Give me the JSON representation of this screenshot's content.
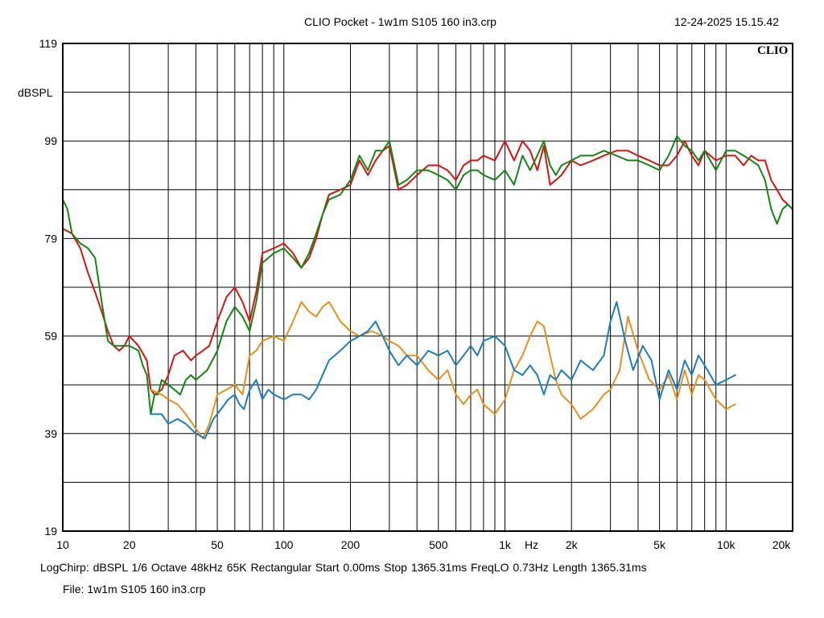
{
  "header": {
    "title": "CLIO Pocket - 1w1m  S105 160 in3.crp",
    "datetime": "12-24-2025 15.15.42",
    "logo": "CLIO"
  },
  "footer": {
    "settings_line": "LogChirp:  dBSPL   1/6 Octave   48kHz   65K   Rectangular   Start 0.00ms    Stop 1365.31ms    FreqLO 0.73Hz    Length 1365.31ms",
    "file_line": "File: 1w1m  S105 160 in3.crp"
  },
  "chart_data": {
    "type": "line",
    "title": "CLIO Pocket - 1w1m  S105 160 in3.crp",
    "xlabel": "Hz",
    "ylabel": "dBSPL",
    "xscale": "log",
    "xlim": [
      10,
      20000
    ],
    "ylim": [
      19,
      119
    ],
    "grid": true,
    "x_tick_labels": [
      {
        "v": 10,
        "t": "10"
      },
      {
        "v": 20,
        "t": "20"
      },
      {
        "v": 50,
        "t": "50"
      },
      {
        "v": 100,
        "t": "100"
      },
      {
        "v": 200,
        "t": "200"
      },
      {
        "v": 500,
        "t": "500"
      },
      {
        "v": 1000,
        "t": "1k"
      },
      {
        "v": 2000,
        "t": "2k"
      },
      {
        "v": 5000,
        "t": "5k"
      },
      {
        "v": 10000,
        "t": "10k"
      },
      {
        "v": 20000,
        "t": "20k"
      }
    ],
    "y_tick_labels": [
      {
        "v": 119,
        "t": "119"
      },
      {
        "v": 99,
        "t": "99"
      },
      {
        "v": 79,
        "t": "79"
      },
      {
        "v": 59,
        "t": "59"
      },
      {
        "v": 39,
        "t": "39"
      },
      {
        "v": 19,
        "t": "19"
      }
    ],
    "series": [
      {
        "color": "#dd1111",
        "x": [
          10,
          11,
          12,
          13,
          14,
          15,
          16,
          17,
          18,
          19,
          20,
          22,
          24,
          25,
          26,
          28,
          30,
          32,
          35,
          38,
          40,
          43,
          46,
          50,
          55,
          60,
          65,
          70,
          75,
          80,
          90,
          100,
          110,
          120,
          130,
          140,
          150,
          160,
          180,
          200,
          220,
          240,
          260,
          280,
          300,
          330,
          360,
          400,
          450,
          500,
          550,
          600,
          650,
          700,
          750,
          800,
          900,
          1000,
          1100,
          1200,
          1300,
          1400,
          1500,
          1600,
          1700,
          1800,
          2000,
          2200,
          2500,
          2800,
          3200,
          3600,
          4000,
          4500,
          5000,
          5500,
          6000,
          6500,
          7000,
          7500,
          8000,
          9000,
          10000,
          11000,
          12000,
          13000,
          14000,
          15000,
          16000,
          17000,
          18000,
          19000,
          20000
        ],
        "y": [
          81,
          80,
          77,
          72,
          68,
          64,
          60,
          57,
          56,
          57,
          59,
          57,
          54,
          48,
          47,
          48,
          51,
          55,
          56,
          54,
          55,
          56,
          57,
          62,
          67,
          69,
          66,
          62,
          68,
          76,
          77,
          78,
          76,
          73,
          75,
          79,
          84,
          88,
          89,
          90,
          95,
          92,
          95,
          97,
          98,
          89,
          90,
          92,
          94,
          94,
          93,
          91,
          94,
          95,
          95,
          96,
          95,
          99,
          95,
          99,
          97,
          93,
          98,
          90,
          91,
          92,
          95,
          94,
          95,
          96,
          97,
          97,
          96,
          95,
          94,
          94,
          96,
          99,
          96,
          94,
          97,
          95,
          96,
          96,
          94,
          96,
          95,
          95,
          91,
          89,
          87,
          86,
          85
        ]
      },
      {
        "color": "#118811",
        "x": [
          10,
          10.5,
          11,
          12,
          13,
          14,
          15,
          16,
          17,
          18,
          20,
          22,
          23,
          24,
          25,
          26,
          27,
          28,
          30,
          32,
          34,
          36,
          38,
          40,
          45,
          50,
          55,
          60,
          65,
          70,
          75,
          80,
          90,
          100,
          110,
          120,
          130,
          140,
          150,
          160,
          180,
          200,
          220,
          240,
          260,
          280,
          300,
          330,
          360,
          400,
          450,
          500,
          550,
          600,
          650,
          700,
          750,
          800,
          900,
          1000,
          1100,
          1200,
          1300,
          1400,
          1500,
          1600,
          1700,
          1800,
          2000,
          2200,
          2500,
          2800,
          3200,
          3600,
          4000,
          4500,
          5000,
          5500,
          6000,
          6500,
          7000,
          7500,
          8000,
          9000,
          10000,
          11000,
          12000,
          13000,
          14000,
          15000,
          16000,
          17000,
          18000,
          19000,
          20000
        ],
        "y": [
          87,
          85,
          80,
          78,
          77,
          75,
          66,
          58,
          57,
          57,
          57,
          56,
          53,
          51,
          43,
          47,
          47,
          50,
          49,
          48,
          47,
          50,
          51,
          50,
          52,
          56,
          62,
          65,
          63,
          60,
          66,
          74,
          76,
          77,
          75,
          73,
          76,
          80,
          84,
          87,
          88,
          91,
          96,
          93,
          97,
          97,
          99,
          90,
          91,
          93,
          93,
          92,
          91,
          89,
          92,
          93,
          93,
          92,
          91,
          93,
          90,
          96,
          93,
          96,
          99,
          94,
          92,
          94,
          95,
          96,
          96,
          97,
          96,
          95,
          95,
          94,
          93,
          96,
          100,
          98,
          97,
          95,
          97,
          93,
          97,
          97,
          96,
          95,
          94,
          91,
          85,
          82,
          85,
          86,
          85
        ]
      },
      {
        "color": "#e8901a",
        "x": [
          25,
          28,
          30,
          33,
          36,
          40,
          43,
          46,
          50,
          55,
          60,
          65,
          70,
          75,
          80,
          90,
          100,
          110,
          120,
          130,
          140,
          150,
          160,
          170,
          180,
          200,
          220,
          250,
          280,
          300,
          330,
          360,
          400,
          450,
          500,
          550,
          600,
          650,
          700,
          750,
          800,
          900,
          1000,
          1100,
          1200,
          1300,
          1400,
          1500,
          1600,
          1700,
          1800,
          2000,
          2200,
          2500,
          2800,
          3000,
          3300,
          3600,
          4000,
          4500,
          5000,
          5500,
          6000,
          6500,
          7000,
          7500,
          8000,
          9000,
          10000,
          11000
        ],
        "y": [
          48,
          47,
          46,
          45,
          43,
          40,
          38,
          41,
          47,
          48,
          49,
          47,
          55,
          56,
          58,
          59,
          58,
          62,
          66,
          64,
          63,
          65,
          66,
          64,
          62,
          60,
          59,
          60,
          59,
          58,
          57,
          55,
          55,
          52,
          50,
          52,
          47,
          45,
          47,
          48,
          45,
          43,
          46,
          52,
          55,
          59,
          62,
          61,
          55,
          50,
          47,
          45,
          42,
          44,
          47,
          48,
          52,
          63,
          56,
          50,
          48,
          51,
          46,
          52,
          47,
          51,
          50,
          46,
          44,
          45
        ]
      },
      {
        "color": "#1a7fbf",
        "x": [
          25,
          28,
          30,
          33,
          36,
          40,
          44,
          48,
          52,
          56,
          60,
          63,
          66,
          70,
          75,
          80,
          85,
          90,
          100,
          110,
          120,
          130,
          140,
          160,
          180,
          200,
          220,
          240,
          260,
          280,
          300,
          330,
          360,
          400,
          450,
          500,
          550,
          600,
          650,
          700,
          750,
          800,
          900,
          1000,
          1100,
          1200,
          1300,
          1400,
          1500,
          1600,
          1700,
          1800,
          2000,
          2200,
          2500,
          2800,
          3000,
          3200,
          3500,
          3800,
          4200,
          4600,
          5000,
          5500,
          6000,
          6500,
          7000,
          7500,
          8000,
          9000,
          10000,
          11000
        ],
        "y": [
          43,
          43,
          41,
          42,
          41,
          39,
          38,
          42,
          44,
          46,
          47,
          45,
          44,
          48,
          50,
          46,
          48,
          47,
          46,
          47,
          47,
          46,
          48,
          54,
          56,
          58,
          59,
          60,
          62,
          59,
          56,
          53,
          55,
          53,
          56,
          55,
          56,
          53,
          55,
          57,
          55,
          58,
          59,
          57,
          52,
          51,
          53,
          51,
          47,
          51,
          50,
          52,
          50,
          54,
          52,
          55,
          62,
          66,
          58,
          52,
          57,
          54,
          46,
          52,
          48,
          54,
          51,
          55,
          53,
          49,
          50,
          51
        ]
      }
    ]
  }
}
